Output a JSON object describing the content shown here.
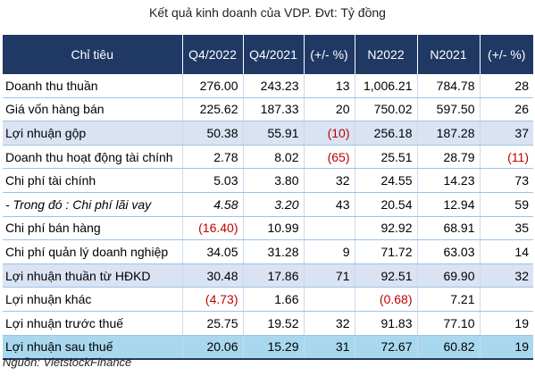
{
  "title": "Kết quả kinh doanh của VDP. Đvt: Tỷ đồng",
  "headers": [
    "Chỉ tiêu",
    "Q4/2022",
    "Q4/2021",
    "(+/- %)",
    "N2022",
    "N2021",
    "(+/- %)"
  ],
  "rows": [
    {
      "label": "Doanh thu thuần",
      "q4_2022": "276.00",
      "q4_2021": "243.23",
      "q_change": "13",
      "n2022": "1,006.21",
      "n2021": "784.78",
      "n_change": "28"
    },
    {
      "label": "Giá vốn hàng bán",
      "q4_2022": "225.62",
      "q4_2021": "187.33",
      "q_change": "20",
      "n2022": "750.02",
      "n2021": "597.50",
      "n_change": "26"
    },
    {
      "label": "Lợi nhuận gộp",
      "q4_2022": "50.38",
      "q4_2021": "55.91",
      "q_change": "(10)",
      "n2022": "256.18",
      "n2021": "187.28",
      "n_change": "37"
    },
    {
      "label": "Doanh thu hoạt động tài chính",
      "q4_2022": "2.78",
      "q4_2021": "8.02",
      "q_change": "(65)",
      "n2022": "25.51",
      "n2021": "28.79",
      "n_change": "(11)"
    },
    {
      "label": "Chi phí tài chính",
      "q4_2022": "5.03",
      "q4_2021": "3.80",
      "q_change": "32",
      "n2022": "24.55",
      "n2021": "14.23",
      "n_change": "73"
    },
    {
      "label": "- Trong đó : Chi phí lãi vay",
      "q4_2022": "4.58",
      "q4_2021": "3.20",
      "q_change": "43",
      "n2022": "20.54",
      "n2021": "12.94",
      "n_change": "59"
    },
    {
      "label": "Chi phí bán hàng",
      "q4_2022": "(16.40)",
      "q4_2021": "10.99",
      "q_change": "",
      "n2022": "92.92",
      "n2021": "68.91",
      "n_change": "35"
    },
    {
      "label": "Chi phí quản lý doanh nghiệp",
      "q4_2022": "34.05",
      "q4_2021": "31.28",
      "q_change": "9",
      "n2022": "71.72",
      "n2021": "63.03",
      "n_change": "14"
    },
    {
      "label": "Lợi nhuận thuần từ HĐKD",
      "q4_2022": "30.48",
      "q4_2021": "17.86",
      "q_change": "71",
      "n2022": "92.51",
      "n2021": "69.90",
      "n_change": "32"
    },
    {
      "label": "Lợi nhuận khác",
      "q4_2022": "(4.73)",
      "q4_2021": "1.66",
      "q_change": "",
      "n2022": "(0.68)",
      "n2021": "7.21",
      "n_change": ""
    },
    {
      "label": "Lợi nhuận trước thuế",
      "q4_2022": "25.75",
      "q4_2021": "19.52",
      "q_change": "32",
      "n2022": "91.83",
      "n2021": "77.10",
      "n_change": "19"
    },
    {
      "label": "Lợi nhuận sau thuế",
      "q4_2022": "20.06",
      "q4_2021": "15.29",
      "q_change": "31",
      "n2022": "72.67",
      "n2021": "60.82",
      "n_change": "19"
    }
  ],
  "source": "Nguồn: VietstockFinance",
  "colors": {
    "header_bg": "#203864",
    "highlight_row": "#dae3f3",
    "final_row": "#a9d8ee",
    "negative_text": "#c00000"
  }
}
